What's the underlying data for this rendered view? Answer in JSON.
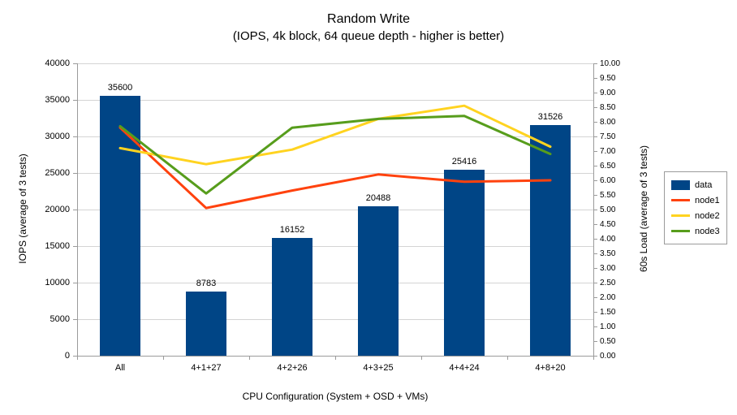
{
  "chart_data": {
    "type": "bar",
    "subtype": "combo-bar-line-dual-axis",
    "title": "Random Write",
    "subtitle": "(IOPS, 4k block, 64 queue depth - higher is better)",
    "categories": [
      "All",
      "4+1+27",
      "4+2+26",
      "4+3+25",
      "4+4+24",
      "4+8+20"
    ],
    "bar_series": {
      "name": "data",
      "color": "#004586",
      "axis": "left",
      "values": [
        35600,
        8783,
        16152,
        20488,
        25416,
        31526
      ],
      "labels": [
        "35600",
        "8783",
        "16152",
        "20488",
        "25416",
        "31526"
      ]
    },
    "line_series": [
      {
        "name": "node1",
        "color": "#ff420e",
        "axis": "right",
        "values": [
          7.8,
          5.05,
          5.65,
          6.2,
          5.95,
          6.0
        ]
      },
      {
        "name": "node2",
        "color": "#ffd320",
        "axis": "right",
        "values": [
          7.1,
          6.55,
          7.05,
          8.1,
          8.55,
          7.15
        ]
      },
      {
        "name": "node3",
        "color": "#579d1c",
        "axis": "right",
        "values": [
          7.85,
          5.55,
          7.8,
          8.1,
          8.2,
          6.9
        ]
      }
    ],
    "left_axis": {
      "title": "IOPS (average of 3 tests)",
      "min": 0,
      "max": 40000,
      "step": 5000,
      "tick_labels": [
        "0",
        "5000",
        "10000",
        "15000",
        "20000",
        "25000",
        "30000",
        "35000",
        "40000"
      ]
    },
    "right_axis": {
      "title": "60s Load (average of 3 tests)",
      "min": 0,
      "max": 10,
      "step": 0.5,
      "decimals": 2,
      "tick_labels": [
        "0.00",
        "0.50",
        "1.00",
        "1.50",
        "2.00",
        "2.50",
        "3.00",
        "3.50",
        "4.00",
        "4.50",
        "5.00",
        "5.50",
        "6.00",
        "6.50",
        "7.00",
        "7.50",
        "8.00",
        "8.50",
        "9.00",
        "9.50",
        "10.00"
      ]
    },
    "x_axis": {
      "title": "CPU Configuration (System + OSD + VMs)"
    },
    "legend": {
      "position": "right",
      "entries": [
        "data",
        "node1",
        "node2",
        "node3"
      ]
    },
    "grid": "horizontal",
    "background_color": "#ffffff"
  }
}
